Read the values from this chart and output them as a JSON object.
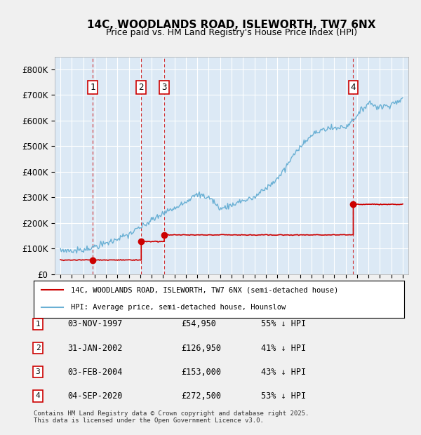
{
  "title": "14C, WOODLANDS ROAD, ISLEWORTH, TW7 6NX",
  "subtitle": "Price paid vs. HM Land Registry's House Price Index (HPI)",
  "ylabel": "",
  "ylim": [
    0,
    850000
  ],
  "yticks": [
    0,
    100000,
    200000,
    300000,
    400000,
    500000,
    600000,
    700000,
    800000
  ],
  "ytick_labels": [
    "£0",
    "£100K",
    "£200K",
    "£300K",
    "£400K",
    "£500K",
    "£600K",
    "£700K",
    "£800K"
  ],
  "xlim_start": 1994.5,
  "xlim_end": 2025.5,
  "bg_color": "#dce9f5",
  "plot_bg": "#dce9f5",
  "grid_color": "#ffffff",
  "red_line_color": "#cc0000",
  "blue_line_color": "#6ab0d4",
  "sale_points": [
    {
      "year": 1997.84,
      "price": 54950,
      "label": "1"
    },
    {
      "year": 2002.08,
      "price": 126950,
      "label": "2"
    },
    {
      "year": 2004.09,
      "price": 153000,
      "label": "3"
    },
    {
      "year": 2020.67,
      "price": 272500,
      "label": "4"
    }
  ],
  "legend_entries": [
    {
      "label": "14C, WOODLANDS ROAD, ISLEWORTH, TW7 6NX (semi-detached house)",
      "color": "#cc0000"
    },
    {
      "label": "HPI: Average price, semi-detached house, Hounslow",
      "color": "#6ab0d4"
    }
  ],
  "table_rows": [
    {
      "num": "1",
      "date": "03-NOV-1997",
      "price": "£54,950",
      "pct": "55% ↓ HPI"
    },
    {
      "num": "2",
      "date": "31-JAN-2002",
      "price": "£126,950",
      "pct": "41% ↓ HPI"
    },
    {
      "num": "3",
      "date": "03-FEB-2004",
      "price": "£153,000",
      "pct": "43% ↓ HPI"
    },
    {
      "num": "4",
      "date": "04-SEP-2020",
      "price": "£272,500",
      "pct": "53% ↓ HPI"
    }
  ],
  "footnote": "Contains HM Land Registry data © Crown copyright and database right 2025.\nThis data is licensed under the Open Government Licence v3.0."
}
